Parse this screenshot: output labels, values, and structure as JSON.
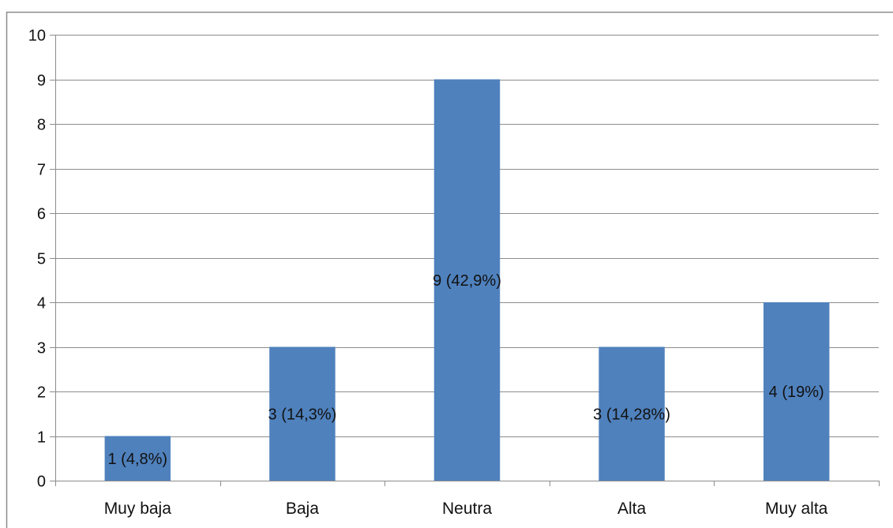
{
  "chart_data": {
    "type": "bar",
    "title": "",
    "xlabel": "",
    "ylabel": "",
    "categories": [
      "Muy baja",
      "Baja",
      "Neutra",
      "Alta",
      "Muy alta"
    ],
    "values": [
      1,
      3,
      9,
      3,
      4
    ],
    "data_labels": [
      "1 (4,8%)",
      "3 (14,3%)",
      "9 (42,9%)",
      "3 (14,28%)",
      "4 (19%)"
    ],
    "ylim": [
      0,
      10
    ],
    "yticks": [
      "0",
      "1",
      "2",
      "3",
      "4",
      "5",
      "6",
      "7",
      "8",
      "9",
      "10"
    ],
    "grid": true,
    "legend": "none",
    "colors": {
      "bar": "#4f81bd",
      "grid": "#8c8c8c",
      "axis": "#8c8c8c",
      "frame": "#8c8c8c",
      "text": "#111111"
    }
  }
}
